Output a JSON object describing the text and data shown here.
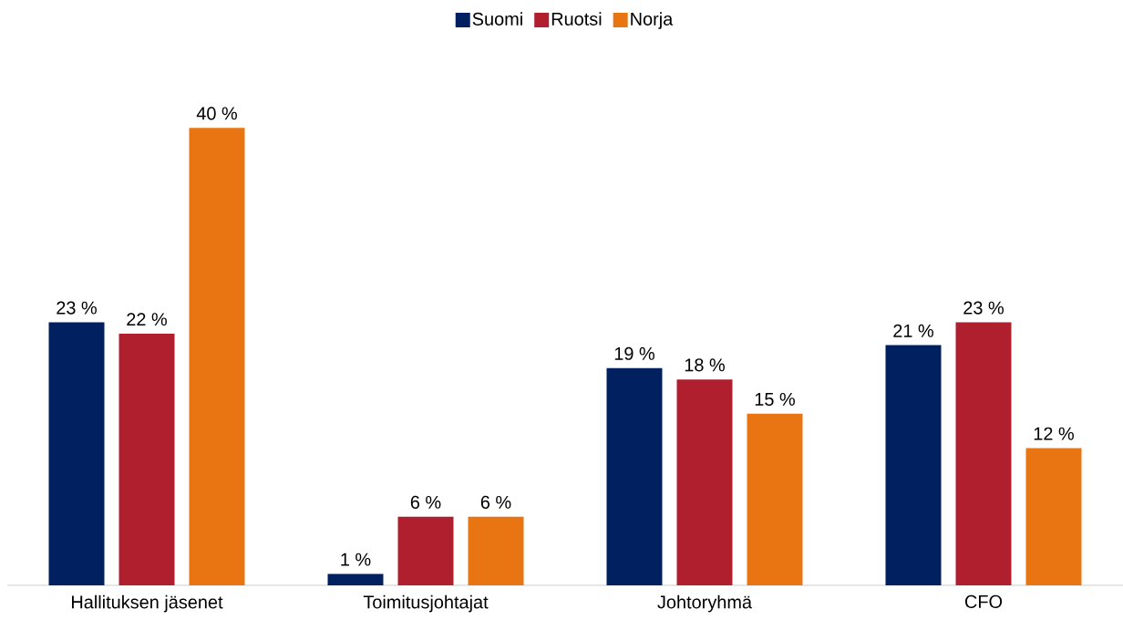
{
  "chart_data": {
    "type": "bar",
    "categories": [
      "Hallituksen jäsenet",
      "Toimitusjohtajat",
      "Johtoryhmä",
      "CFO"
    ],
    "series": [
      {
        "name": "Suomi",
        "color": "#002060",
        "values": [
          23,
          1,
          19,
          21
        ],
        "value_labels": [
          "23 %",
          "1 %",
          "19 %",
          "21 %"
        ]
      },
      {
        "name": "Ruotsi",
        "color": "#b01f2e",
        "values": [
          22,
          6,
          18,
          23
        ],
        "value_labels": [
          "22 %",
          "6 %",
          "18 %",
          "23 %"
        ]
      },
      {
        "name": "Norja",
        "color": "#e87511",
        "values": [
          40,
          6,
          15,
          12
        ],
        "value_labels": [
          "40 %",
          "6 %",
          "15 %",
          "12 %"
        ]
      }
    ],
    "legend": "top"
  }
}
